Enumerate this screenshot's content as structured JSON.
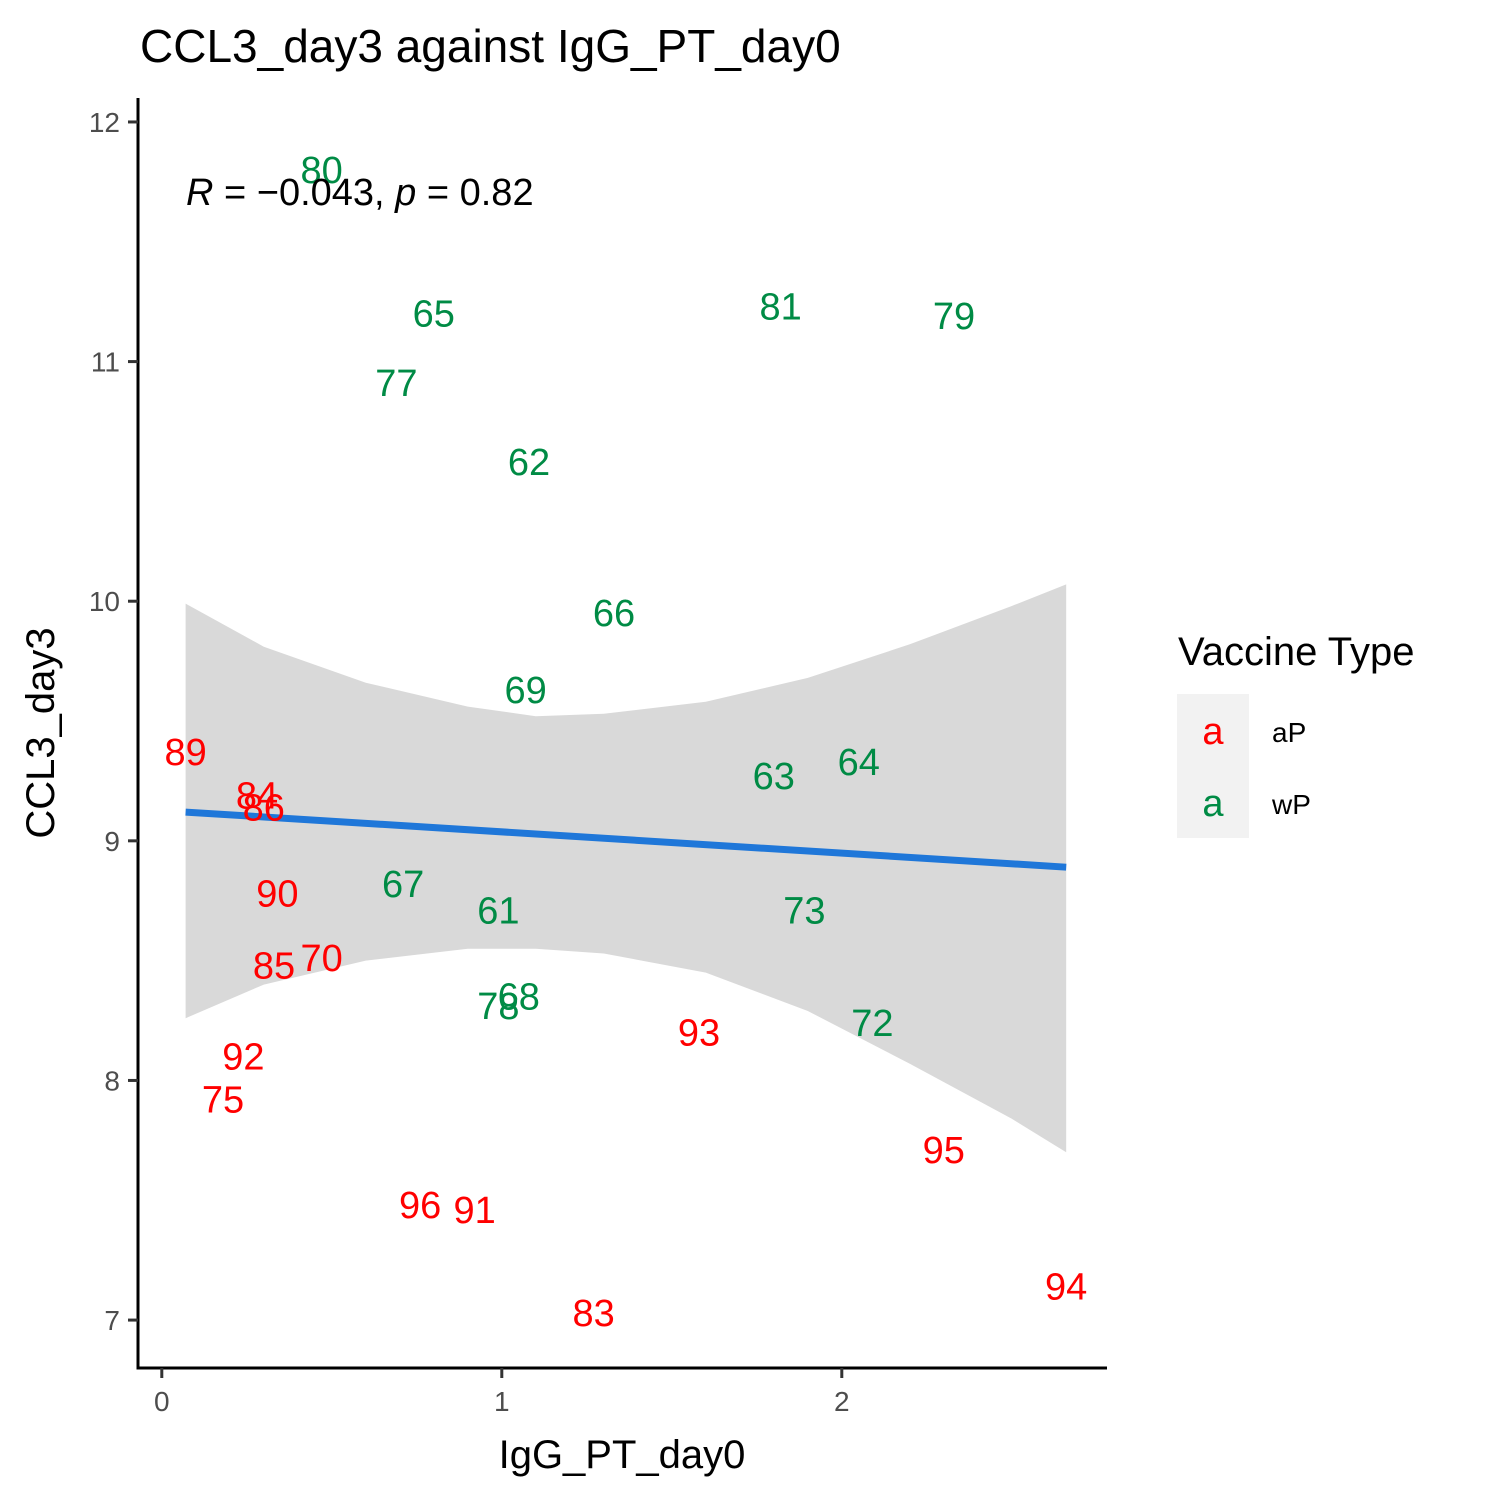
{
  "chart_data": {
    "type": "scatter",
    "title": "CCL3_day3 against IgG_PT_day0",
    "xlabel": "IgG_PT_day0",
    "ylabel": "CCL3_day3",
    "xlim": [
      -0.07,
      2.78
    ],
    "ylim": [
      6.8,
      12.1
    ],
    "x_ticks": [
      0,
      1,
      2
    ],
    "y_ticks": [
      7,
      8,
      9,
      10,
      11,
      12
    ],
    "grid": false,
    "annotation": {
      "r_symbol": "R",
      "r_text": " = −0.043, ",
      "p_symbol": "p",
      "p_text": " = 0.82"
    },
    "legend": {
      "title": "Vaccine Type",
      "placement": "right",
      "key_glyph": "a",
      "entries": [
        {
          "name": "aP",
          "color": "#ff0000"
        },
        {
          "name": "wP",
          "color": "#008b45"
        }
      ]
    },
    "series": [
      {
        "name": "aP",
        "color": "#ff0000",
        "points": [
          {
            "label": "89",
            "x": 0.07,
            "y": 9.37
          },
          {
            "label": "84",
            "x": 0.28,
            "y": 9.19
          },
          {
            "label": "86",
            "x": 0.3,
            "y": 9.14
          },
          {
            "label": "90",
            "x": 0.34,
            "y": 8.78
          },
          {
            "label": "85",
            "x": 0.33,
            "y": 8.48
          },
          {
            "label": "70",
            "x": 0.47,
            "y": 8.51
          },
          {
            "label": "92",
            "x": 0.24,
            "y": 8.1
          },
          {
            "label": "75",
            "x": 0.18,
            "y": 7.92
          },
          {
            "label": "96",
            "x": 0.76,
            "y": 7.48
          },
          {
            "label": "91",
            "x": 0.92,
            "y": 7.46
          },
          {
            "label": "83",
            "x": 1.27,
            "y": 7.03
          },
          {
            "label": "93",
            "x": 1.58,
            "y": 8.2
          },
          {
            "label": "95",
            "x": 2.3,
            "y": 7.71
          },
          {
            "label": "94",
            "x": 2.66,
            "y": 7.14
          }
        ]
      },
      {
        "name": "wP",
        "color": "#008b45",
        "points": [
          {
            "label": "80",
            "x": 0.47,
            "y": 11.8
          },
          {
            "label": "65",
            "x": 0.8,
            "y": 11.2
          },
          {
            "label": "77",
            "x": 0.69,
            "y": 10.91
          },
          {
            "label": "62",
            "x": 1.08,
            "y": 10.58
          },
          {
            "label": "81",
            "x": 1.82,
            "y": 11.23
          },
          {
            "label": "79",
            "x": 2.33,
            "y": 11.19
          },
          {
            "label": "66",
            "x": 1.33,
            "y": 9.95
          },
          {
            "label": "69",
            "x": 1.07,
            "y": 9.63
          },
          {
            "label": "63",
            "x": 1.8,
            "y": 9.27
          },
          {
            "label": "64",
            "x": 2.05,
            "y": 9.33
          },
          {
            "label": "67",
            "x": 0.71,
            "y": 8.82
          },
          {
            "label": "61",
            "x": 0.99,
            "y": 8.71
          },
          {
            "label": "73",
            "x": 1.89,
            "y": 8.71
          },
          {
            "label": "68",
            "x": 1.05,
            "y": 8.35
          },
          {
            "label": "78",
            "x": 0.99,
            "y": 8.31
          },
          {
            "label": "72",
            "x": 2.09,
            "y": 8.24
          }
        ]
      }
    ],
    "fit_line": {
      "color": "#1f77d9",
      "x": [
        0.07,
        2.66
      ],
      "y": [
        9.12,
        8.89
      ]
    },
    "confidence_band": {
      "color": "#d9d9d9",
      "x": [
        0.07,
        0.3,
        0.6,
        0.9,
        1.1,
        1.3,
        1.6,
        1.9,
        2.2,
        2.5,
        2.66
      ],
      "upper": [
        9.99,
        9.81,
        9.66,
        9.56,
        9.52,
        9.53,
        9.58,
        9.68,
        9.82,
        9.98,
        10.07
      ],
      "lower": [
        8.26,
        8.4,
        8.5,
        8.55,
        8.55,
        8.53,
        8.45,
        8.29,
        8.07,
        7.84,
        7.7
      ]
    }
  }
}
